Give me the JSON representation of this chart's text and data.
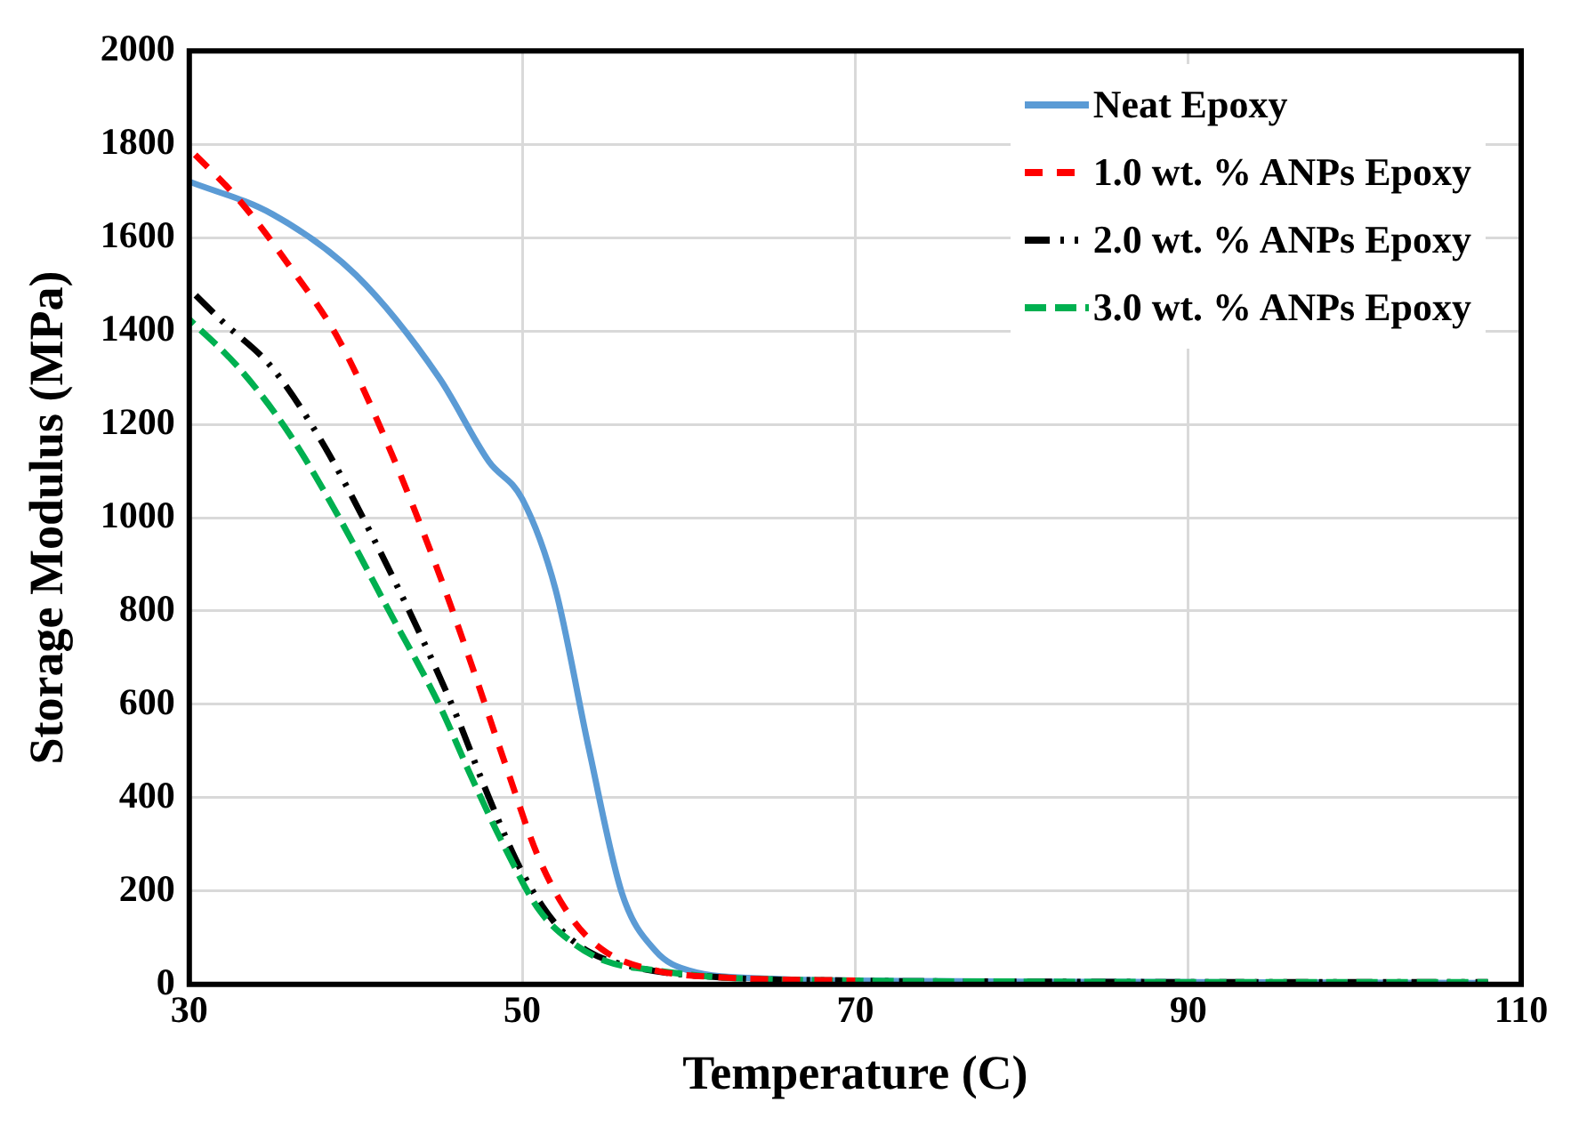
{
  "chart_data": {
    "type": "line",
    "xlabel": "Temperature (C)",
    "ylabel": "Storage Modulus (MPa)",
    "xlim": [
      30,
      110
    ],
    "xticks": [
      30,
      50,
      70,
      90,
      110
    ],
    "ylim": [
      0,
      2000
    ],
    "yticks": [
      0,
      200,
      400,
      600,
      800,
      1000,
      1200,
      1400,
      1600,
      1800,
      2000
    ],
    "grid": true,
    "legend": "top right",
    "marker": "none",
    "series": [
      {
        "name": "Neat Epoxy",
        "color": "#5b9bd5",
        "line_style": "solid",
        "x": [
          30,
          35,
          40,
          45,
          48,
          50,
          52,
          54,
          56,
          58,
          60,
          65,
          70,
          80,
          90,
          100,
          108
        ],
        "values": [
          1720,
          1650,
          1520,
          1300,
          1120,
          1040,
          846,
          505,
          194,
          72,
          30,
          12,
          8,
          6,
          5,
          4,
          3
        ]
      },
      {
        "name": "1.0 wt. % ANPs Epoxy",
        "color": "#ff0000",
        "line_style": "dashed",
        "x": [
          30,
          33,
          36,
          39,
          42,
          45,
          47,
          49,
          51,
          53,
          55,
          58,
          62,
          70
        ],
        "values": [
          1790,
          1680,
          1540,
          1380,
          1150,
          880,
          680,
          470,
          270,
          140,
          70,
          30,
          15,
          8
        ]
      },
      {
        "name": "2.0 wt. % ANPs Epoxy",
        "color": "#000000",
        "line_style": "dashed",
        "x": [
          30,
          32,
          35,
          38,
          41,
          44,
          46,
          48,
          50,
          52,
          54,
          57,
          62,
          70,
          80,
          90,
          100,
          108
        ],
        "values": [
          1490,
          1420,
          1320,
          1160,
          960,
          740,
          580,
          400,
          240,
          130,
          70,
          35,
          15,
          8,
          6,
          5,
          5,
          5
        ]
      },
      {
        "name": "3.0 wt. % ANPs Epoxy",
        "color": "#00b050",
        "line_style": "dashed",
        "x": [
          30,
          33,
          36,
          39,
          42,
          45,
          47,
          49,
          51,
          53,
          55,
          58,
          62,
          70,
          80,
          90,
          100,
          108
        ],
        "values": [
          1425,
          1320,
          1180,
          1000,
          800,
          600,
          440,
          290,
          160,
          90,
          50,
          30,
          15,
          8,
          6,
          5,
          5,
          5
        ]
      }
    ]
  }
}
